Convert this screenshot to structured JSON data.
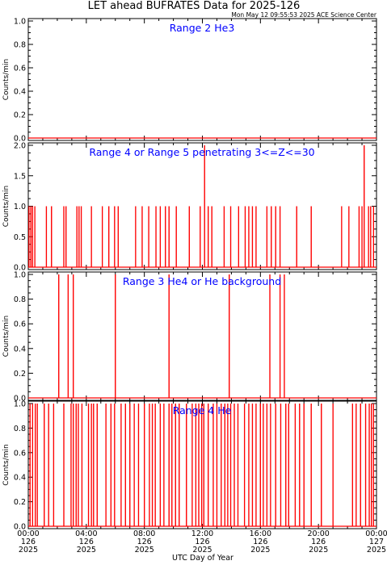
{
  "title": "LET ahead BUFRATES Data for 2025-126",
  "timestamp": "Mon May 12 09:55:53 2025 ACE Science Center",
  "xlabel": "UTC Day of Year",
  "x_ticks": [
    {
      "time": "00:00",
      "day": "126",
      "year": "2025"
    },
    {
      "time": "04:00",
      "day": "126",
      "year": "2025"
    },
    {
      "time": "08:00",
      "day": "126",
      "year": "2025"
    },
    {
      "time": "12:00",
      "day": "126",
      "year": "2025"
    },
    {
      "time": "16:00",
      "day": "126",
      "year": "2025"
    },
    {
      "time": "20:00",
      "day": "126",
      "year": "2025"
    },
    {
      "time": "00:00",
      "day": "127",
      "year": "2025"
    }
  ],
  "colors": {
    "series": "#ff0000",
    "panel_title": "#0000ff",
    "axes": "#000000"
  },
  "chart_data": [
    {
      "type": "line",
      "title": "Range 2 He3",
      "ylabel": "Counts/min",
      "ylim": [
        0,
        1.0
      ],
      "yticks": [
        "0.0",
        "0.2",
        "0.4",
        "0.6",
        "0.8",
        "1.0"
      ],
      "xlim_hours": [
        0,
        24
      ],
      "baseline": 0,
      "spikes": []
    },
    {
      "type": "line",
      "title": "Range 4 or Range 5 penetrating 3<=Z<=30",
      "ylabel": "Counts/min",
      "ylim": [
        0,
        2.0
      ],
      "yticks": [
        "0.0",
        "0.5",
        "1.0",
        "1.5",
        "2.0"
      ],
      "xlim_hours": [
        0,
        24
      ],
      "baseline": 0,
      "spikes": [
        {
          "t": 0.05,
          "v": 1
        },
        {
          "t": 0.18,
          "v": 1
        },
        {
          "t": 0.3,
          "v": 1
        },
        {
          "t": 0.45,
          "v": 1
        },
        {
          "t": 1.25,
          "v": 1
        },
        {
          "t": 1.6,
          "v": 1
        },
        {
          "t": 2.45,
          "v": 1
        },
        {
          "t": 2.6,
          "v": 1
        },
        {
          "t": 3.35,
          "v": 1
        },
        {
          "t": 3.5,
          "v": 1
        },
        {
          "t": 3.65,
          "v": 1
        },
        {
          "t": 4.35,
          "v": 1
        },
        {
          "t": 5.1,
          "v": 1
        },
        {
          "t": 5.55,
          "v": 1
        },
        {
          "t": 5.95,
          "v": 1
        },
        {
          "t": 6.2,
          "v": 1
        },
        {
          "t": 7.4,
          "v": 1
        },
        {
          "t": 7.85,
          "v": 1
        },
        {
          "t": 8.3,
          "v": 1
        },
        {
          "t": 8.8,
          "v": 1
        },
        {
          "t": 9.1,
          "v": 1
        },
        {
          "t": 9.45,
          "v": 1
        },
        {
          "t": 9.7,
          "v": 1
        },
        {
          "t": 10.2,
          "v": 1
        },
        {
          "t": 11.1,
          "v": 1
        },
        {
          "t": 11.85,
          "v": 1
        },
        {
          "t": 12.15,
          "v": 2
        },
        {
          "t": 12.4,
          "v": 1
        },
        {
          "t": 12.65,
          "v": 1
        },
        {
          "t": 13.5,
          "v": 1
        },
        {
          "t": 13.95,
          "v": 1
        },
        {
          "t": 14.5,
          "v": 1
        },
        {
          "t": 14.95,
          "v": 1
        },
        {
          "t": 15.2,
          "v": 1
        },
        {
          "t": 15.45,
          "v": 1
        },
        {
          "t": 15.7,
          "v": 1
        },
        {
          "t": 16.45,
          "v": 1
        },
        {
          "t": 16.75,
          "v": 1
        },
        {
          "t": 17.05,
          "v": 1
        },
        {
          "t": 17.35,
          "v": 1
        },
        {
          "t": 18.5,
          "v": 1
        },
        {
          "t": 19.5,
          "v": 1
        },
        {
          "t": 21.6,
          "v": 1
        },
        {
          "t": 22.1,
          "v": 1
        },
        {
          "t": 22.8,
          "v": 1
        },
        {
          "t": 23.0,
          "v": 1
        },
        {
          "t": 23.15,
          "v": 2
        },
        {
          "t": 23.45,
          "v": 1
        },
        {
          "t": 23.6,
          "v": 1
        },
        {
          "t": 23.8,
          "v": 1
        }
      ]
    },
    {
      "type": "line",
      "title": "Range 3 He4 or He background",
      "ylabel": "Counts/min",
      "ylim": [
        0,
        1.0
      ],
      "yticks": [
        "0.0",
        "0.2",
        "0.4",
        "0.6",
        "0.8",
        "1.0"
      ],
      "xlim_hours": [
        0,
        24
      ],
      "baseline": 0,
      "spikes": [
        {
          "t": 2.1,
          "v": 1
        },
        {
          "t": 2.75,
          "v": 1
        },
        {
          "t": 3.1,
          "v": 1
        },
        {
          "t": 6.0,
          "v": 1
        },
        {
          "t": 9.7,
          "v": 1
        },
        {
          "t": 13.85,
          "v": 1
        },
        {
          "t": 16.65,
          "v": 1
        },
        {
          "t": 17.35,
          "v": 1
        },
        {
          "t": 17.65,
          "v": 1
        }
      ]
    },
    {
      "type": "line",
      "title": "Range 4 He",
      "ylabel": "Counts/min",
      "ylim": [
        0,
        1.0
      ],
      "yticks": [
        "0.0",
        "0.2",
        "0.4",
        "0.6",
        "0.8",
        "1.0"
      ],
      "xlim_hours": [
        0,
        24
      ],
      "baseline": 0,
      "spikes": [
        {
          "t": 0.12,
          "v": 1
        },
        {
          "t": 0.3,
          "v": 1
        },
        {
          "t": 0.48,
          "v": 1
        },
        {
          "t": 0.62,
          "v": 1
        },
        {
          "t": 1.1,
          "v": 1
        },
        {
          "t": 1.4,
          "v": 1
        },
        {
          "t": 1.75,
          "v": 1
        },
        {
          "t": 2.45,
          "v": 1
        },
        {
          "t": 2.95,
          "v": 1
        },
        {
          "t": 3.1,
          "v": 1
        },
        {
          "t": 3.3,
          "v": 1
        },
        {
          "t": 3.45,
          "v": 1
        },
        {
          "t": 3.7,
          "v": 1
        },
        {
          "t": 4.15,
          "v": 1
        },
        {
          "t": 4.35,
          "v": 1
        },
        {
          "t": 4.5,
          "v": 1
        },
        {
          "t": 4.75,
          "v": 1
        },
        {
          "t": 5.35,
          "v": 1
        },
        {
          "t": 5.7,
          "v": 1
        },
        {
          "t": 5.95,
          "v": 1
        },
        {
          "t": 6.4,
          "v": 1
        },
        {
          "t": 6.7,
          "v": 1
        },
        {
          "t": 7.0,
          "v": 1
        },
        {
          "t": 7.3,
          "v": 1
        },
        {
          "t": 7.6,
          "v": 1
        },
        {
          "t": 8.0,
          "v": 1
        },
        {
          "t": 8.35,
          "v": 1
        },
        {
          "t": 8.55,
          "v": 1
        },
        {
          "t": 8.75,
          "v": 1
        },
        {
          "t": 9.1,
          "v": 1
        },
        {
          "t": 9.35,
          "v": 1
        },
        {
          "t": 9.7,
          "v": 1
        },
        {
          "t": 9.9,
          "v": 1
        },
        {
          "t": 10.15,
          "v": 1
        },
        {
          "t": 10.4,
          "v": 1
        },
        {
          "t": 10.9,
          "v": 1
        },
        {
          "t": 11.3,
          "v": 1
        },
        {
          "t": 11.55,
          "v": 1
        },
        {
          "t": 11.75,
          "v": 1
        },
        {
          "t": 11.95,
          "v": 1
        },
        {
          "t": 12.1,
          "v": 1
        },
        {
          "t": 12.4,
          "v": 1
        },
        {
          "t": 12.75,
          "v": 1
        },
        {
          "t": 13.0,
          "v": 1
        },
        {
          "t": 13.3,
          "v": 1
        },
        {
          "t": 13.55,
          "v": 1
        },
        {
          "t": 13.75,
          "v": 1
        },
        {
          "t": 13.95,
          "v": 1
        },
        {
          "t": 14.2,
          "v": 1
        },
        {
          "t": 14.45,
          "v": 1
        },
        {
          "t": 14.9,
          "v": 1
        },
        {
          "t": 15.2,
          "v": 1
        },
        {
          "t": 15.45,
          "v": 1
        },
        {
          "t": 15.7,
          "v": 1
        },
        {
          "t": 16.0,
          "v": 1
        },
        {
          "t": 16.2,
          "v": 1
        },
        {
          "t": 16.45,
          "v": 1
        },
        {
          "t": 16.7,
          "v": 1
        },
        {
          "t": 17.05,
          "v": 1
        },
        {
          "t": 17.4,
          "v": 1
        },
        {
          "t": 17.75,
          "v": 1
        },
        {
          "t": 17.95,
          "v": 1
        },
        {
          "t": 18.4,
          "v": 1
        },
        {
          "t": 18.7,
          "v": 1
        },
        {
          "t": 19.0,
          "v": 1
        },
        {
          "t": 19.5,
          "v": 1
        },
        {
          "t": 20.2,
          "v": 1
        },
        {
          "t": 21.0,
          "v": 1
        },
        {
          "t": 22.35,
          "v": 1
        },
        {
          "t": 22.6,
          "v": 1
        },
        {
          "t": 22.9,
          "v": 1
        },
        {
          "t": 23.25,
          "v": 1
        },
        {
          "t": 23.5,
          "v": 1
        },
        {
          "t": 23.65,
          "v": 1
        },
        {
          "t": 23.8,
          "v": 1
        }
      ]
    }
  ]
}
